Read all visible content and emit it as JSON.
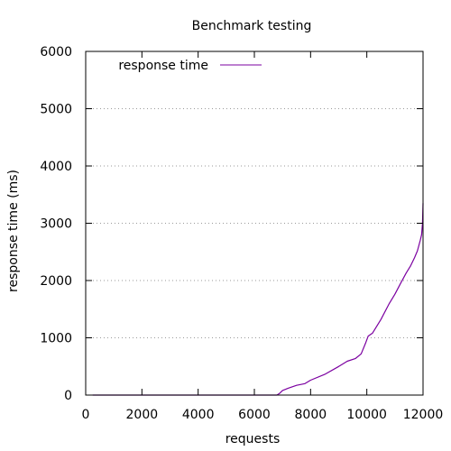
{
  "chart_data": {
    "type": "line",
    "title": "Benchmark testing",
    "xlabel": "requests",
    "ylabel": "response time (ms)",
    "xlim": [
      0,
      12000
    ],
    "ylim": [
      0,
      6000
    ],
    "xticks": [
      0,
      2000,
      4000,
      6000,
      8000,
      10000,
      12000
    ],
    "yticks": [
      0,
      1000,
      2000,
      3000,
      4000,
      5000,
      6000
    ],
    "grid": "horizontal-dotted",
    "legend_position": "top-left",
    "colors": {
      "series": "#7b00a0",
      "grid": "#9a9a9a",
      "axis": "#000000"
    },
    "series": [
      {
        "name": "response time",
        "x": [
          250,
          6800,
          6900,
          7000,
          7200,
          7500,
          7800,
          8000,
          8500,
          9000,
          9300,
          9600,
          9800,
          9950,
          10050,
          10200,
          10500,
          10800,
          11000,
          11200,
          11400,
          11550,
          11700,
          11800,
          11900,
          11950,
          11980,
          12000
        ],
        "y": [
          0,
          0,
          30,
          80,
          120,
          170,
          200,
          260,
          360,
          500,
          590,
          640,
          720,
          900,
          1030,
          1080,
          1320,
          1600,
          1760,
          1950,
          2130,
          2250,
          2400,
          2520,
          2700,
          2800,
          3000,
          3350
        ]
      }
    ]
  }
}
